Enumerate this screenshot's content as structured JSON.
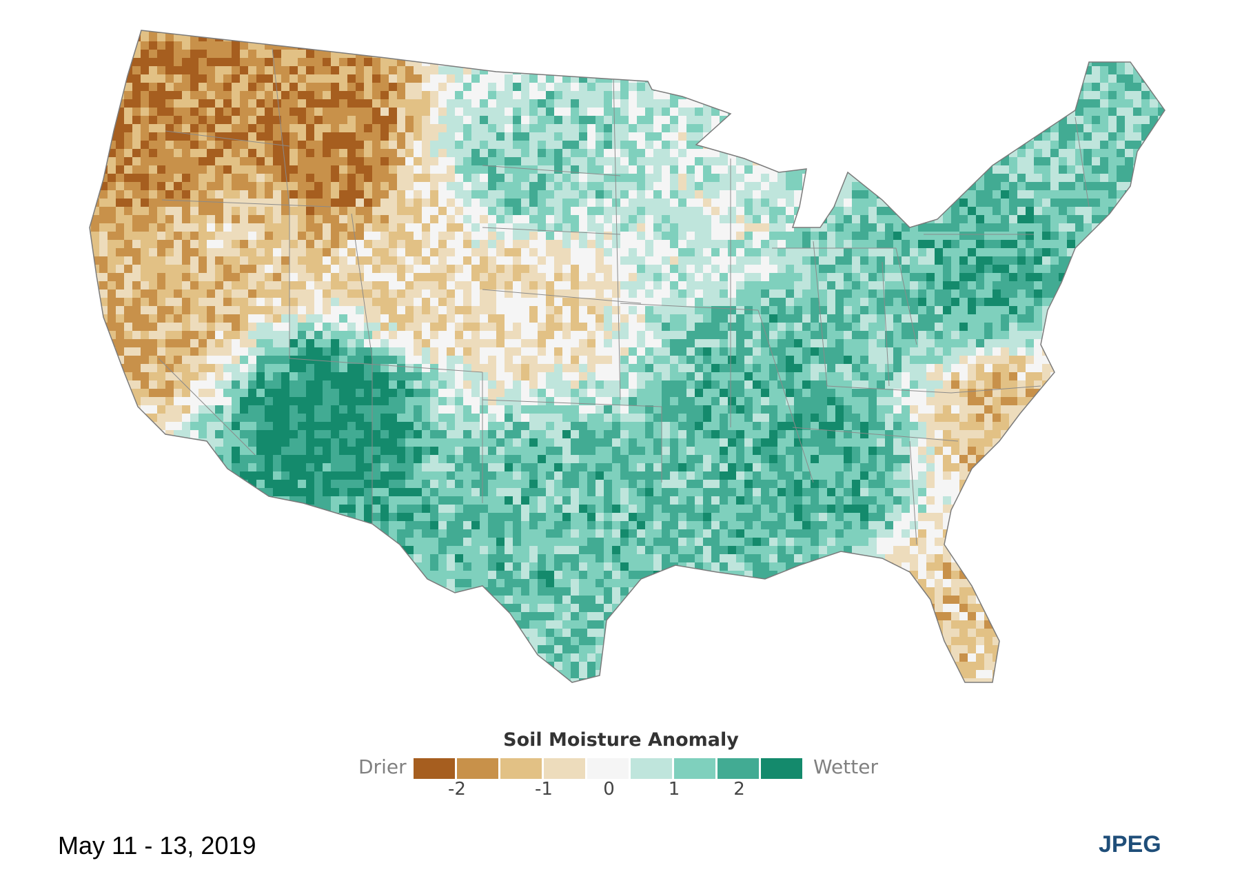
{
  "map": {
    "region": "contiguous-united-states",
    "layer": "soil-moisture-anomaly",
    "regions": [
      {
        "name": "pacific-northwest",
        "anomaly": -1.6
      },
      {
        "name": "northern-rockies",
        "anomaly": -1.7
      },
      {
        "name": "california",
        "anomaly": -1.1
      },
      {
        "name": "great-basin",
        "anomaly": -0.8
      },
      {
        "name": "colorado-wyoming",
        "anomaly": -0.6
      },
      {
        "name": "nebraska-kansas-west",
        "anomaly": -0.5
      },
      {
        "name": "northern-plains",
        "anomaly": 0.9
      },
      {
        "name": "upper-midwest",
        "anomaly": 0.3
      },
      {
        "name": "southwest-desert",
        "anomaly": 1.9
      },
      {
        "name": "southern-plains-texas",
        "anomaly": 1.2
      },
      {
        "name": "mississippi-valley",
        "anomaly": 1.3
      },
      {
        "name": "southeast",
        "anomaly": 1.4
      },
      {
        "name": "ohio-valley",
        "anomaly": 1.1
      },
      {
        "name": "mid-atlantic",
        "anomaly": 1.5
      },
      {
        "name": "new-england",
        "anomaly": 1.0
      },
      {
        "name": "carolinas-coast",
        "anomaly": -0.9
      },
      {
        "name": "florida",
        "anomaly": -0.7
      }
    ]
  },
  "legend": {
    "title": "Soil Moisture Anomaly",
    "low_label": "Drier",
    "high_label": "Wetter",
    "ticks": [
      "-2",
      "-1",
      "0",
      "1",
      "2"
    ],
    "colors": [
      "#a65e1f",
      "#c8914a",
      "#e2c185",
      "#eddcbc",
      "#f5f5f5",
      "#bfe5dc",
      "#7fd0bd",
      "#42ab93",
      "#148a6c"
    ]
  },
  "footer": {
    "date": "May 11 - 13, 2019",
    "download_label": "JPEG"
  }
}
